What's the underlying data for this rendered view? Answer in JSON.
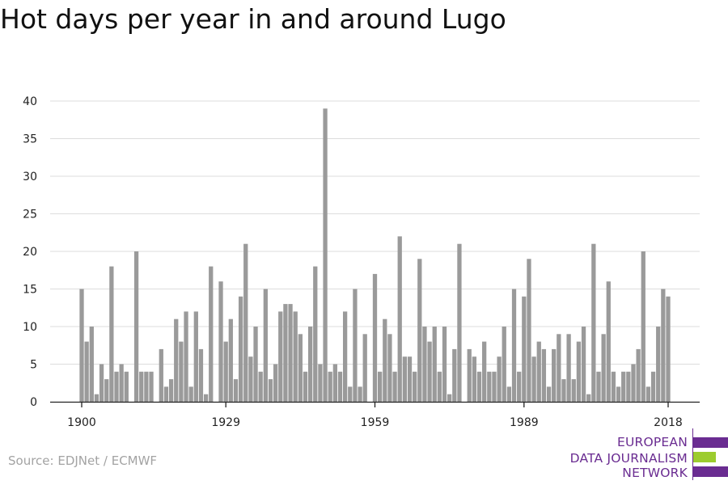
{
  "title": "Hot days per year in and around Lugo",
  "source": "Source: EDJNet / ECMWF",
  "logo": {
    "lines": [
      "EUROPEAN",
      "DATA JOURNALISM",
      "NETWORK"
    ],
    "colors": [
      "#6a2c91",
      "#9ccc2e",
      "#6a2c91"
    ]
  },
  "chart_data": {
    "type": "bar",
    "title": "Hot days per year in and around Lugo",
    "xlabel": "",
    "ylabel": "",
    "bar_color": "#9a9a9a",
    "grid": true,
    "ylim": [
      0,
      40
    ],
    "y_ticks": [
      0,
      5,
      10,
      15,
      20,
      25,
      30,
      35,
      40
    ],
    "x_ticks": [
      1900,
      1929,
      1959,
      1989,
      2018
    ],
    "x": [
      1900,
      1901,
      1902,
      1903,
      1904,
      1905,
      1906,
      1907,
      1908,
      1909,
      1910,
      1911,
      1912,
      1913,
      1914,
      1915,
      1916,
      1917,
      1918,
      1919,
      1920,
      1921,
      1922,
      1923,
      1924,
      1925,
      1926,
      1927,
      1928,
      1929,
      1930,
      1931,
      1932,
      1933,
      1934,
      1935,
      1936,
      1937,
      1938,
      1939,
      1940,
      1941,
      1942,
      1943,
      1944,
      1945,
      1946,
      1947,
      1948,
      1949,
      1950,
      1951,
      1952,
      1953,
      1954,
      1955,
      1956,
      1957,
      1958,
      1959,
      1960,
      1961,
      1962,
      1963,
      1964,
      1965,
      1966,
      1967,
      1968,
      1969,
      1970,
      1971,
      1972,
      1973,
      1974,
      1975,
      1976,
      1977,
      1978,
      1979,
      1980,
      1981,
      1982,
      1983,
      1984,
      1985,
      1986,
      1987,
      1988,
      1989,
      1990,
      1991,
      1992,
      1993,
      1994,
      1995,
      1996,
      1997,
      1998,
      1999,
      2000,
      2001,
      2002,
      2003,
      2004,
      2005,
      2006,
      2007,
      2008,
      2009,
      2010,
      2011,
      2012,
      2013,
      2014,
      2015,
      2016,
      2017,
      2018
    ],
    "values": [
      15,
      8,
      10,
      1,
      5,
      3,
      18,
      4,
      5,
      4,
      0,
      20,
      4,
      4,
      4,
      0,
      7,
      2,
      3,
      11,
      8,
      12,
      2,
      12,
      7,
      1,
      18,
      0,
      16,
      8,
      11,
      3,
      14,
      21,
      6,
      10,
      4,
      15,
      3,
      5,
      12,
      13,
      13,
      12,
      9,
      4,
      10,
      18,
      5,
      39,
      4,
      5,
      4,
      12,
      2,
      15,
      2,
      9,
      0,
      17,
      4,
      11,
      9,
      4,
      22,
      6,
      6,
      4,
      19,
      10,
      8,
      10,
      4,
      10,
      1,
      7,
      21,
      0,
      7,
      6,
      4,
      8,
      4,
      4,
      6,
      10,
      2,
      15,
      4,
      14,
      19,
      6,
      8,
      7,
      2,
      7,
      9,
      3,
      9,
      3,
      8,
      10,
      1,
      21,
      4,
      9,
      16,
      4,
      2,
      4,
      4,
      5,
      7,
      20,
      2,
      4,
      10,
      15,
      14
    ]
  }
}
